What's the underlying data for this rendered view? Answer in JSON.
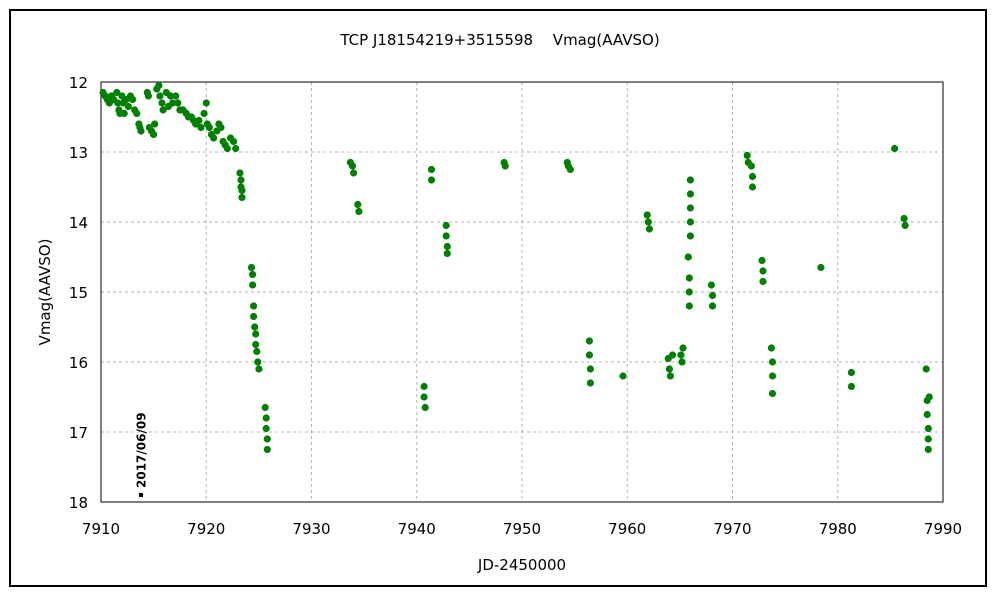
{
  "chart_data": {
    "type": "scatter",
    "title": "TCP J18154219+3515598　 Vmag(AAVSO)",
    "xlabel": "JD-2450000",
    "ylabel": "Vmag(AAVSO)",
    "xlim": [
      7910,
      7990
    ],
    "ylim": [
      12,
      18
    ],
    "y_inverted": true,
    "grid": true,
    "x_ticks": [
      7910,
      7920,
      7930,
      7940,
      7950,
      7960,
      7970,
      7980,
      7990
    ],
    "y_ticks": [
      12,
      13,
      14,
      15,
      16,
      17,
      18
    ],
    "marker_color": "#008000",
    "annotation": {
      "text": "2017/06/09",
      "x": 7913.8,
      "y": 17.9
    },
    "series": [
      {
        "points": [
          [
            7910.2,
            12.15
          ],
          [
            7910.4,
            12.2
          ],
          [
            7910.6,
            12.25
          ],
          [
            7910.8,
            12.3
          ],
          [
            7911.0,
            12.2
          ],
          [
            7911.2,
            12.25
          ],
          [
            7911.5,
            12.15
          ],
          [
            7911.6,
            12.3
          ],
          [
            7911.7,
            12.4
          ],
          [
            7911.8,
            12.45
          ],
          [
            7912.0,
            12.2
          ],
          [
            7912.1,
            12.3
          ],
          [
            7912.2,
            12.45
          ],
          [
            7912.4,
            12.25
          ],
          [
            7912.6,
            12.35
          ],
          [
            7912.8,
            12.2
          ],
          [
            7913.0,
            12.25
          ],
          [
            7913.2,
            12.4
          ],
          [
            7913.4,
            12.45
          ],
          [
            7913.6,
            12.6
          ],
          [
            7913.7,
            12.65
          ],
          [
            7913.8,
            12.7
          ],
          [
            7914.4,
            12.15
          ],
          [
            7914.5,
            12.2
          ],
          [
            7914.6,
            12.65
          ],
          [
            7914.8,
            12.7
          ],
          [
            7915.0,
            12.75
          ],
          [
            7915.1,
            12.6
          ],
          [
            7915.3,
            12.1
          ],
          [
            7915.5,
            12.05
          ],
          [
            7915.6,
            12.2
          ],
          [
            7915.8,
            12.3
          ],
          [
            7915.9,
            12.4
          ],
          [
            7916.2,
            12.15
          ],
          [
            7916.4,
            12.35
          ],
          [
            7916.6,
            12.2
          ],
          [
            7916.8,
            12.3
          ],
          [
            7917.1,
            12.2
          ],
          [
            7917.3,
            12.3
          ],
          [
            7917.5,
            12.4
          ],
          [
            7917.8,
            12.4
          ],
          [
            7918.1,
            12.45
          ],
          [
            7918.3,
            12.5
          ],
          [
            7918.6,
            12.5
          ],
          [
            7918.8,
            12.55
          ],
          [
            7919.0,
            12.6
          ],
          [
            7919.3,
            12.55
          ],
          [
            7919.5,
            12.65
          ],
          [
            7919.8,
            12.45
          ],
          [
            7920.0,
            12.3
          ],
          [
            7920.1,
            12.6
          ],
          [
            7920.3,
            12.65
          ],
          [
            7920.5,
            12.75
          ],
          [
            7920.7,
            12.8
          ],
          [
            7921.0,
            12.7
          ],
          [
            7921.2,
            12.6
          ],
          [
            7921.4,
            12.65
          ],
          [
            7921.6,
            12.85
          ],
          [
            7921.8,
            12.9
          ],
          [
            7922.0,
            12.95
          ],
          [
            7922.3,
            12.8
          ],
          [
            7922.6,
            12.85
          ],
          [
            7922.8,
            12.95
          ],
          [
            7923.2,
            13.3
          ],
          [
            7923.3,
            13.4
          ],
          [
            7923.3,
            13.5
          ],
          [
            7923.4,
            13.55
          ],
          [
            7923.4,
            13.65
          ],
          [
            7924.3,
            14.65
          ],
          [
            7924.4,
            14.75
          ],
          [
            7924.4,
            14.9
          ],
          [
            7924.5,
            15.2
          ],
          [
            7924.5,
            15.35
          ],
          [
            7924.6,
            15.5
          ],
          [
            7924.7,
            15.6
          ],
          [
            7924.7,
            15.75
          ],
          [
            7924.8,
            15.85
          ],
          [
            7924.9,
            16.0
          ],
          [
            7925.0,
            16.1
          ],
          [
            7925.6,
            16.65
          ],
          [
            7925.7,
            16.8
          ],
          [
            7925.7,
            16.95
          ],
          [
            7925.8,
            17.1
          ],
          [
            7925.8,
            17.25
          ],
          [
            7933.7,
            13.15
          ],
          [
            7933.9,
            13.2
          ],
          [
            7934.0,
            13.3
          ],
          [
            7934.4,
            13.75
          ],
          [
            7934.5,
            13.85
          ],
          [
            7940.7,
            16.35
          ],
          [
            7940.7,
            16.5
          ],
          [
            7940.8,
            16.65
          ],
          [
            7941.4,
            13.25
          ],
          [
            7941.4,
            13.4
          ],
          [
            7942.8,
            14.05
          ],
          [
            7942.8,
            14.2
          ],
          [
            7942.9,
            14.35
          ],
          [
            7942.9,
            14.45
          ],
          [
            7948.3,
            13.15
          ],
          [
            7948.4,
            13.2
          ],
          [
            7954.3,
            13.15
          ],
          [
            7954.4,
            13.2
          ],
          [
            7954.6,
            13.25
          ],
          [
            7956.4,
            15.7
          ],
          [
            7956.4,
            15.9
          ],
          [
            7956.5,
            16.1
          ],
          [
            7956.5,
            16.3
          ],
          [
            7959.6,
            16.2
          ],
          [
            7961.9,
            13.9
          ],
          [
            7962.0,
            14.0
          ],
          [
            7962.1,
            14.1
          ],
          [
            7963.9,
            15.95
          ],
          [
            7964.0,
            16.1
          ],
          [
            7964.1,
            16.2
          ],
          [
            7964.3,
            15.9
          ],
          [
            7965.1,
            15.9
          ],
          [
            7965.2,
            16.0
          ],
          [
            7965.3,
            15.8
          ],
          [
            7965.8,
            14.5
          ],
          [
            7965.9,
            14.8
          ],
          [
            7965.9,
            15.0
          ],
          [
            7965.9,
            15.2
          ],
          [
            7966.0,
            13.4
          ],
          [
            7966.0,
            13.6
          ],
          [
            7966.0,
            13.8
          ],
          [
            7966.0,
            14.0
          ],
          [
            7966.0,
            14.2
          ],
          [
            7968.0,
            14.9
          ],
          [
            7968.1,
            15.05
          ],
          [
            7968.1,
            15.2
          ],
          [
            7971.4,
            13.05
          ],
          [
            7971.5,
            13.15
          ],
          [
            7971.8,
            13.2
          ],
          [
            7971.9,
            13.35
          ],
          [
            7971.9,
            13.5
          ],
          [
            7972.8,
            14.55
          ],
          [
            7972.9,
            14.7
          ],
          [
            7972.9,
            14.85
          ],
          [
            7973.7,
            15.8
          ],
          [
            7973.8,
            16.0
          ],
          [
            7973.8,
            16.2
          ],
          [
            7973.8,
            16.45
          ],
          [
            7978.4,
            14.65
          ],
          [
            7981.3,
            16.15
          ],
          [
            7981.3,
            16.35
          ],
          [
            7985.4,
            12.95
          ],
          [
            7986.3,
            13.95
          ],
          [
            7986.4,
            14.05
          ],
          [
            7988.4,
            16.1
          ],
          [
            7988.5,
            16.55
          ],
          [
            7988.5,
            16.75
          ],
          [
            7988.6,
            16.95
          ],
          [
            7988.6,
            17.1
          ],
          [
            7988.6,
            17.25
          ],
          [
            7988.7,
            16.5
          ]
        ]
      }
    ]
  }
}
